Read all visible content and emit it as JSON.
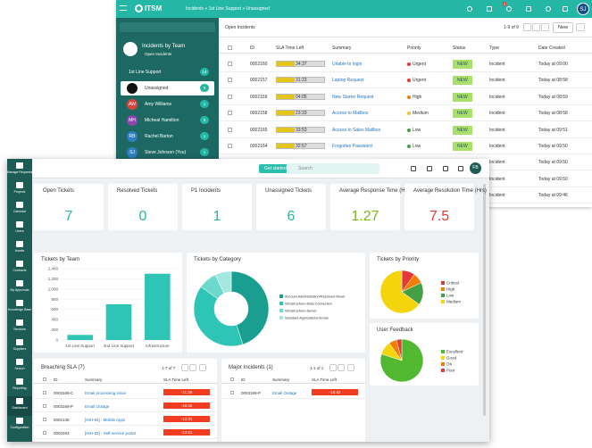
{
  "back_window": {
    "logo": "ITSM",
    "breadcrumb": "Incidents  »  1st Line Support  »  Unassigned",
    "badge": "2",
    "avatar": "SJ",
    "sidebar": {
      "title": "Incidents by Team",
      "subtitle": "Open Incidents",
      "group": {
        "name": "1st Line Support",
        "count": "14"
      },
      "members": [
        {
          "name": "Unassigned",
          "count": "9"
        },
        {
          "initials": "AW",
          "name": "Amy Williams",
          "count": "1",
          "color": "#d9463c"
        },
        {
          "initials": "MH",
          "name": "Micheal Hamilton",
          "count": "2",
          "color": "#8e44ad"
        },
        {
          "initials": "RB",
          "name": "Rachel Barton",
          "count": "1",
          "color": "#2f80c1"
        },
        {
          "initials": "SJ",
          "name": "Steve Johnson (You)",
          "count": "1",
          "color": "#2f80c1"
        }
      ]
    },
    "toolbar": {
      "filter": "Open Incidents",
      "paging": "1-9 of 9",
      "new": "New"
    },
    "columns": [
      "ID",
      "SLA Time Left",
      "Summary",
      "Priority",
      "Status",
      "Type",
      "Date Created"
    ],
    "rows": [
      {
        "id": "0002160",
        "sla": "34:37",
        "summary": "Unable to login",
        "priority": "Urgent",
        "priority_color": "#e53935",
        "status": "NEW",
        "type": "Incident",
        "date": "Today at 09:00"
      },
      {
        "id": "0002157",
        "sla": "31:23",
        "summary": "Laptop Request",
        "priority": "Urgent",
        "priority_color": "#e53935",
        "status": "NEW",
        "type": "Incident",
        "date": "Today at 08:58"
      },
      {
        "id": "0002159",
        "sla": "04:05",
        "summary": "New Starter Request",
        "priority": "High",
        "priority_color": "#f57c00",
        "status": "NEW",
        "type": "Incident",
        "date": "Today at 08:59"
      },
      {
        "id": "0002158",
        "sla": "23:33",
        "summary": "Access to Mailbox",
        "priority": "Medium",
        "priority_color": "#fbc02d",
        "status": "NEW",
        "type": "Incident",
        "date": "Today at 08:58"
      },
      {
        "id": "0002165",
        "sla": "33:53",
        "summary": "Access to Sales Mailbox",
        "priority": "Low",
        "priority_color": "#43a047",
        "status": "NEW",
        "type": "Incident",
        "date": "Today at 09:51"
      },
      {
        "id": "0002164",
        "sla": "32:57",
        "summary": "Forgotten Password",
        "priority": "Low",
        "priority_color": "#43a047",
        "status": "NEW",
        "type": "Incident",
        "date": "Today at 09:50"
      },
      {
        "type": "Incident",
        "date": "Today at 09:50"
      },
      {
        "type": "Incident",
        "date": "Today at 09:50"
      },
      {
        "type": "Incident",
        "date": "Today at 09:46"
      }
    ]
  },
  "dashboard": {
    "nav": [
      "Manage Requests",
      "Projects",
      "Calendar",
      "Users",
      "Assets",
      "Contracts",
      "My Approvals",
      "Knowledge Base",
      "Services",
      "Suppliers",
      "Search",
      "Reporting",
      "Dashboard",
      "Configuration"
    ],
    "tooltip": "Dashboard",
    "get_started": "Get started",
    "search": "Search",
    "avatar": "FB",
    "kpis": [
      {
        "label": "Open Tickets",
        "value": 7,
        "color": "#26b5a5"
      },
      {
        "label": "Resolved Tickets",
        "value": 0,
        "color": "#26b5a5"
      },
      {
        "label": "P1 Incidents",
        "value": 1,
        "color": "#26b5a5"
      },
      {
        "label": "Unassigned Tickets",
        "value": 6,
        "color": "#26b5a5"
      },
      {
        "label": "Average Response Time (Hrs)",
        "value": 1.27,
        "color": "#7cb518"
      },
      {
        "label": "Average Resolution Time (Hrs)",
        "value": 7.5,
        "color": "#e53935"
      }
    ],
    "breaching": {
      "title": "Breaching SLA (7)",
      "paging": "1-7 of 7",
      "columns": [
        "ID",
        "Summary",
        "SLA Time Left"
      ],
      "rows": [
        {
          "id": "0003169-C",
          "summary": "Email processing issue",
          "sla": "-11:39"
        },
        {
          "id": "0003169-P",
          "summary": "Email Outage",
          "sla": "-16:42"
        },
        {
          "id": "0002145",
          "summary": "[INH-84] - Mobile Apps",
          "sla": "-12:31"
        },
        {
          "id": "0002263",
          "summary": "[INH-83] - Self-service portal",
          "sla": "-13:21"
        }
      ]
    },
    "major": {
      "title": "Major Incidents (1)",
      "paging": "1-1 of 1",
      "columns": [
        "ID",
        "Summary",
        "SLA Time Left"
      ],
      "rows": [
        {
          "id": "0003169-P",
          "summary": "Email Outage",
          "sla": "-16:42"
        }
      ]
    }
  },
  "chart_data": [
    {
      "type": "bar",
      "title": "Tickets by Team",
      "categories": [
        "1st Line Support",
        "2nd Line Support",
        "Infrastructure"
      ],
      "values": [
        100,
        700,
        1300
      ],
      "color": "#2ec4b6",
      "ylim": [
        0,
        1400
      ],
      "yticks": [
        0,
        200,
        400,
        600,
        800,
        {
          "value": 1000,
          "label": "1,000"
        },
        {
          "value": 1200,
          "label": "1,200"
        },
        {
          "value": 1400,
          "label": "1,400"
        }
      ]
    },
    {
      "type": "donut",
      "title": "Tickets by Category",
      "labels": [
        "Account Administration/Password Reset",
        "Infrastructure>Data Connection",
        "Infrastructure>Server",
        "Standard Applications>Email"
      ],
      "values": [
        45,
        40,
        8,
        7
      ],
      "colors": [
        "#1a9e8f",
        "#2ec4b6",
        "#6dd8cc",
        "#a3e8e0"
      ]
    },
    {
      "type": "pie",
      "title": "Tickets by Priority",
      "labels": [
        "Critical",
        "High",
        "Low",
        "Medium"
      ],
      "values": [
        10,
        8,
        17,
        65
      ],
      "colors": [
        "#e53935",
        "#f57c00",
        "#43a047",
        "#f4d40a"
      ]
    },
    {
      "type": "pie",
      "title": "User Feedback",
      "labels": [
        "Excellent",
        "Good",
        "OK",
        "Poor"
      ],
      "values": [
        80,
        10,
        6,
        4
      ],
      "colors": [
        "#52b830",
        "#f4d40a",
        "#f57c00",
        "#e53935"
      ]
    }
  ]
}
